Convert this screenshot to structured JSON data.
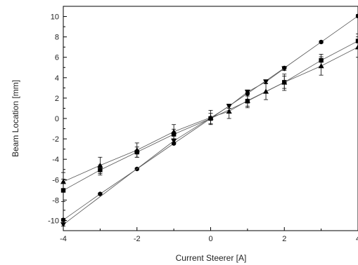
{
  "chart_data": {
    "type": "scatter",
    "title": "",
    "xlabel": "Current Steerer [A]",
    "ylabel": "Beam Location [mm]",
    "xlim": [
      -4,
      4
    ],
    "ylim": [
      -11,
      11
    ],
    "x_ticks": [
      -4,
      -2,
      0,
      2,
      4
    ],
    "y_ticks": [
      -10,
      -8,
      -6,
      -4,
      -2,
      0,
      2,
      4,
      6,
      8,
      10
    ],
    "grid": false,
    "legend": "none",
    "series": [
      {
        "marker": "circle",
        "color": "#000000",
        "points": [
          {
            "x": -4,
            "y": -9.95,
            "err": 0.15
          },
          {
            "x": -3,
            "y": -7.4,
            "err": 0.1
          },
          {
            "x": -2,
            "y": -4.95,
            "err": 0.1
          },
          {
            "x": -1,
            "y": -2.45,
            "err": 0.1
          },
          {
            "x": 0,
            "y": 0.0,
            "err": 0.1
          },
          {
            "x": 1,
            "y": 2.45,
            "err": 0.1
          },
          {
            "x": 2,
            "y": 4.95,
            "err": 0.1
          },
          {
            "x": 3,
            "y": 7.5,
            "err": 0.1
          },
          {
            "x": 4,
            "y": 10.05,
            "err": 0.15
          }
        ]
      },
      {
        "marker": "triangle-down",
        "color": "#000000",
        "points": [
          {
            "x": -4,
            "y": -10.4,
            "err": 0.15
          },
          {
            "x": -1,
            "y": -2.2,
            "err": 0.2
          },
          {
            "x": 0.5,
            "y": 1.2,
            "err": 0.2
          },
          {
            "x": 1,
            "y": 2.6,
            "err": 0.2
          },
          {
            "x": 1.5,
            "y": 3.6,
            "err": 0.2
          },
          {
            "x": 2,
            "y": 4.9,
            "err": 0.2
          }
        ]
      },
      {
        "marker": "square",
        "color": "#000000",
        "points": [
          {
            "x": -4,
            "y": -7.05,
            "err": 1.1
          },
          {
            "x": -3,
            "y": -5.05,
            "err": 0.5
          },
          {
            "x": -2,
            "y": -3.3,
            "err": 0.5
          },
          {
            "x": -1,
            "y": -1.55,
            "err": 0.5
          },
          {
            "x": 0,
            "y": 0.0,
            "err": 0.5
          },
          {
            "x": 1,
            "y": 1.7,
            "err": 0.5
          },
          {
            "x": 2,
            "y": 3.55,
            "err": 0.6
          },
          {
            "x": 3,
            "y": 5.7,
            "err": 0.6
          },
          {
            "x": 4,
            "y": 7.6,
            "err": 0.7
          }
        ]
      },
      {
        "marker": "triangle-up",
        "color": "#000000",
        "points": [
          {
            "x": -4,
            "y": -6.2,
            "err": 0.9
          },
          {
            "x": -3,
            "y": -4.6,
            "err": 0.8
          },
          {
            "x": -2,
            "y": -3.1,
            "err": 0.7
          },
          {
            "x": -1,
            "y": -1.3,
            "err": 0.7
          },
          {
            "x": 0,
            "y": 0.1,
            "err": 0.7
          },
          {
            "x": 0.5,
            "y": 0.7,
            "err": 0.7
          },
          {
            "x": 1,
            "y": 1.75,
            "err": 0.7
          },
          {
            "x": 1.5,
            "y": 2.65,
            "err": 0.8
          },
          {
            "x": 2,
            "y": 3.55,
            "err": 0.8
          },
          {
            "x": 3,
            "y": 5.15,
            "err": 0.9
          },
          {
            "x": 4,
            "y": 7.0,
            "err": 1.0
          }
        ]
      }
    ]
  }
}
